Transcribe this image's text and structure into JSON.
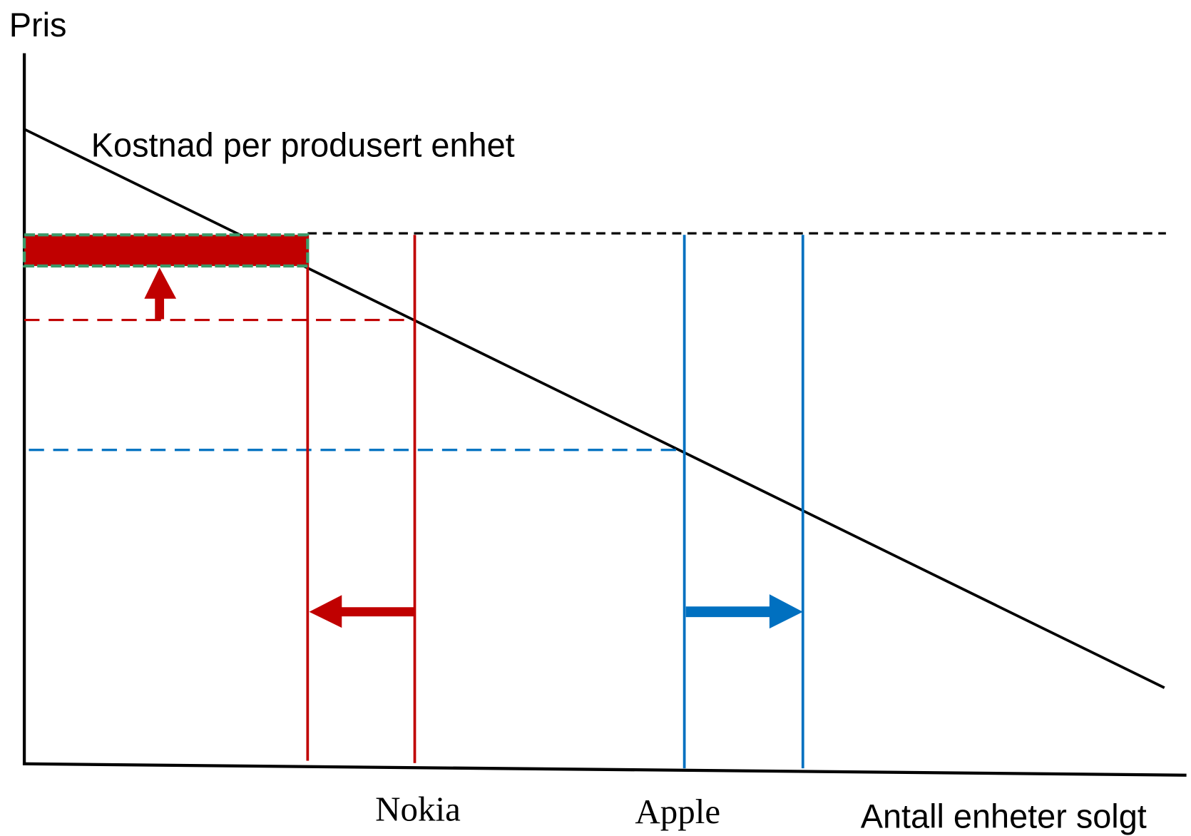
{
  "y_axis_label": "Pris",
  "x_axis_label": "Antall enheter solgt",
  "curve_label": "Kostnad per produsert enhet",
  "companies": [
    "Nokia",
    "Apple"
  ]
}
